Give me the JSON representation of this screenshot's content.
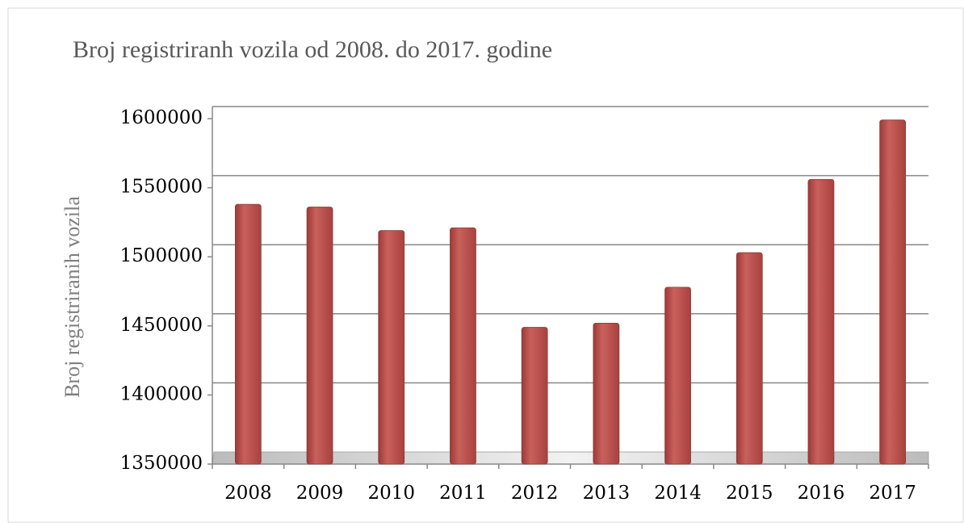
{
  "chart_data": {
    "type": "bar",
    "title": "Broj registriranh vozila od 2008. do 2017. godine",
    "y_label": "Broj registriranih vozila",
    "categories": [
      "2008",
      "2009",
      "2010",
      "2011",
      "2012",
      "2013",
      "2014",
      "2015",
      "2016",
      "2017"
    ],
    "values": [
      1538000,
      1536000,
      1519000,
      1521000,
      1449000,
      1452000,
      1478000,
      1503000,
      1556000,
      1599000
    ],
    "color": "#c0504d",
    "ylim": [
      1350000,
      1600000
    ],
    "yticks": [
      1350000,
      1400000,
      1450000,
      1500000,
      1550000,
      1600000
    ],
    "grid": true
  }
}
